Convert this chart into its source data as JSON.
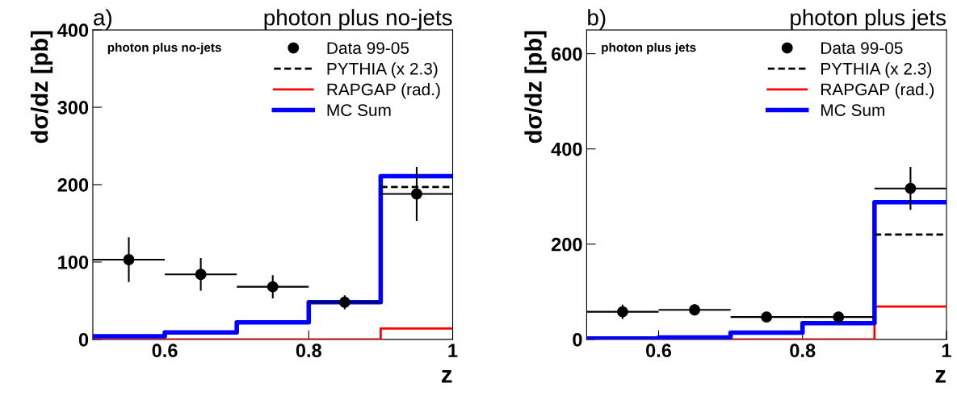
{
  "chart_data": [
    {
      "type": "step",
      "title": "photon plus no-jets",
      "subtitle": "a)",
      "xlabel": "z",
      "ylabel": "dσ/dz [pb]",
      "annotations": [
        "photon plus no-jets"
      ],
      "xlim": [
        0.5,
        1
      ],
      "xticks": [
        0.6,
        0.8,
        1
      ],
      "ylim": [
        0,
        400
      ],
      "yticks": [
        0,
        100,
        200,
        300,
        400
      ],
      "grid": false,
      "legend": "top right",
      "series": [
        {
          "name": "Data 99-05",
          "type": "scatter",
          "color": "#000000",
          "marker": "circle",
          "x": [
            0.55,
            0.65,
            0.75,
            0.85,
            0.95
          ],
          "values": [
            103,
            84,
            68,
            48,
            188
          ],
          "errors": [
            29,
            21,
            15,
            9,
            35
          ],
          "xerrors": [
            0.05,
            0.05,
            0.05,
            0.05,
            0.05
          ]
        },
        {
          "name": "PYTHIA (x 2.3)",
          "color": "#000000",
          "line_style": "dashed",
          "x": [
            0.9,
            1
          ],
          "values": [
            197,
            197
          ]
        },
        {
          "name": "RAPGAP (rad.)",
          "color": "#ff0000",
          "line_style": "solid",
          "x": [
            0.5,
            0.6,
            0.7,
            0.8,
            0.9,
            1
          ],
          "values": [
            0,
            0,
            0,
            0,
            14,
            14
          ]
        },
        {
          "name": "MC Sum",
          "color": "#0000ff",
          "line_style": "solid",
          "x": [
            0.5,
            0.6,
            0.7,
            0.8,
            0.9,
            1
          ],
          "values": [
            4,
            9,
            22,
            48,
            211,
            211
          ]
        }
      ]
    },
    {
      "type": "step",
      "title": "photon plus jets",
      "subtitle": "b)",
      "xlabel": "z",
      "ylabel": "dσ/dz [pb]",
      "annotations": [
        "photon plus jets"
      ],
      "xlim": [
        0.5,
        1
      ],
      "xticks": [
        0.6,
        0.8,
        1
      ],
      "ylim": [
        0,
        650
      ],
      "yticks": [
        0,
        200,
        400,
        600
      ],
      "grid": false,
      "legend": "top right",
      "series": [
        {
          "name": "Data 99-05",
          "type": "scatter",
          "color": "#000000",
          "marker": "circle",
          "x": [
            0.55,
            0.65,
            0.75,
            0.85,
            0.95
          ],
          "values": [
            58,
            62,
            47,
            47,
            317
          ],
          "errors": [
            15,
            12,
            5,
            5,
            45
          ],
          "xerrors": [
            0.05,
            0.05,
            0.05,
            0.05,
            0.05
          ]
        },
        {
          "name": "PYTHIA (x 2.3)",
          "color": "#000000",
          "line_style": "dashed",
          "x": [
            0.9,
            1
          ],
          "values": [
            220,
            220
          ]
        },
        {
          "name": "RAPGAP (rad.)",
          "color": "#ff0000",
          "line_style": "solid",
          "x": [
            0.5,
            0.6,
            0.7,
            0.8,
            0.9,
            1
          ],
          "values": [
            0,
            0,
            0,
            0,
            69,
            69
          ]
        },
        {
          "name": "MC Sum",
          "color": "#0000ff",
          "line_style": "solid",
          "x": [
            0.5,
            0.6,
            0.7,
            0.8,
            0.9,
            1
          ],
          "values": [
            2,
            4,
            14,
            34,
            288,
            288
          ]
        }
      ]
    }
  ]
}
